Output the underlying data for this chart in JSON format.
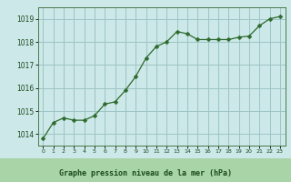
{
  "x": [
    0,
    1,
    2,
    3,
    4,
    5,
    6,
    7,
    8,
    9,
    10,
    11,
    12,
    13,
    14,
    15,
    16,
    17,
    18,
    19,
    20,
    21,
    22,
    23
  ],
  "y": [
    1013.8,
    1014.5,
    1014.7,
    1014.6,
    1014.6,
    1014.8,
    1015.3,
    1015.4,
    1015.9,
    1016.5,
    1017.3,
    1017.8,
    1018.0,
    1018.45,
    1018.35,
    1018.1,
    1018.1,
    1018.1,
    1018.1,
    1018.2,
    1018.25,
    1018.7,
    1019.0,
    1019.1
  ],
  "line_color": "#2d6a2d",
  "marker": "D",
  "marker_size": 2.5,
  "bg_color": "#cce8e8",
  "grid_color": "#9dc4c4",
  "xlabel": "Graphe pression niveau de la mer (hPa)",
  "xlabel_color": "#1a4a1a",
  "tick_label_color": "#1a4a1a",
  "ylim": [
    1013.5,
    1019.5
  ],
  "xlim": [
    -0.5,
    23.5
  ],
  "yticks": [
    1014,
    1015,
    1016,
    1017,
    1018,
    1019
  ],
  "xticks": [
    0,
    1,
    2,
    3,
    4,
    5,
    6,
    7,
    8,
    9,
    10,
    11,
    12,
    13,
    14,
    15,
    16,
    17,
    18,
    19,
    20,
    21,
    22,
    23
  ],
  "xtick_labels": [
    "0",
    "1",
    "2",
    "3",
    "4",
    "5",
    "6",
    "7",
    "8",
    "9",
    "10",
    "11",
    "12",
    "13",
    "14",
    "15",
    "16",
    "17",
    "18",
    "19",
    "20",
    "21",
    "22",
    "23"
  ],
  "spine_color": "#4a7a4a",
  "bottom_band_color": "#a8d4a8"
}
